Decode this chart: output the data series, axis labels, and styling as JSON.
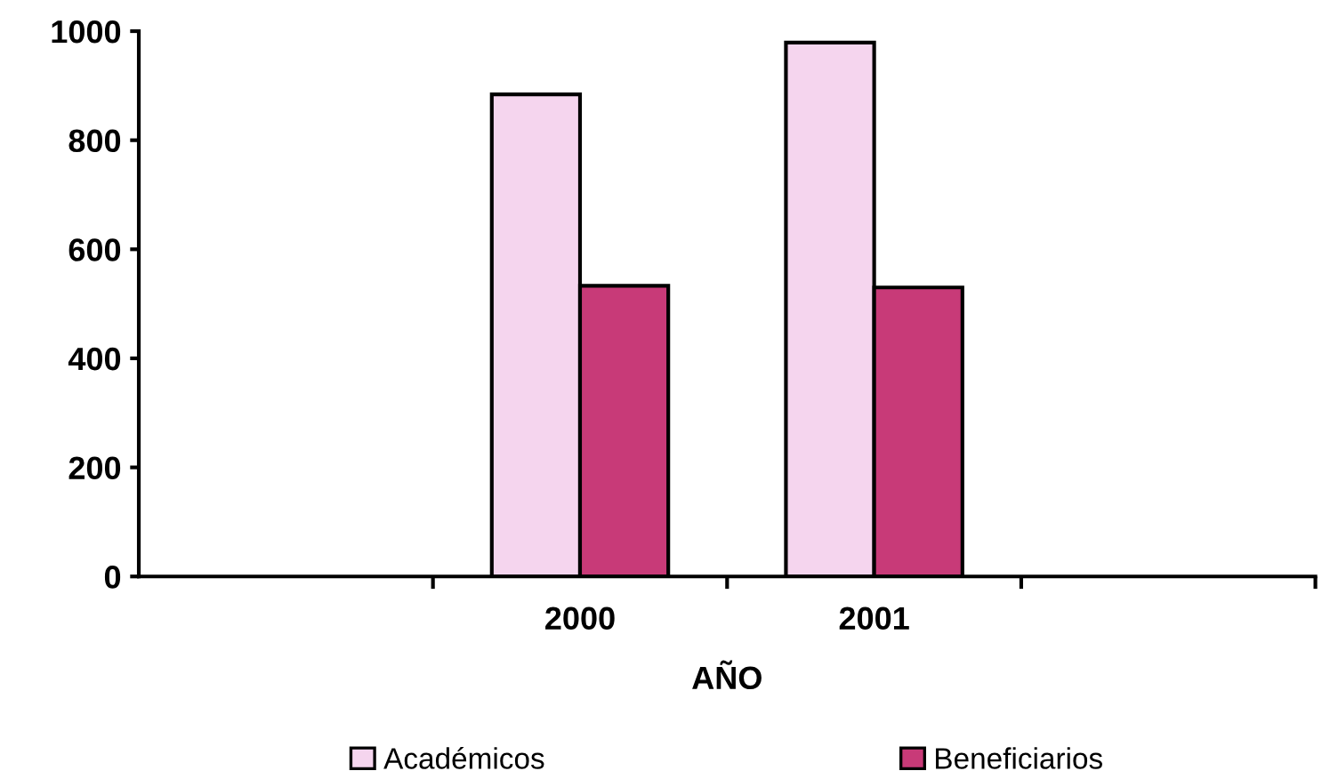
{
  "chart_data": {
    "type": "bar",
    "xlabel": "AÑO",
    "categories": [
      null,
      "2000",
      "2001",
      null
    ],
    "series": [
      {
        "name": "Académicos",
        "color": "#f5d5ee",
        "values": [
          null,
          884,
          979,
          null
        ]
      },
      {
        "name": "Beneficiarios",
        "color": "#c83a78",
        "values": [
          null,
          533,
          530,
          null
        ]
      }
    ],
    "ylim": [
      0,
      1000
    ],
    "yticks": [
      0,
      200,
      400,
      600,
      800,
      1000
    ],
    "grid": false,
    "legend": "bottom"
  }
}
